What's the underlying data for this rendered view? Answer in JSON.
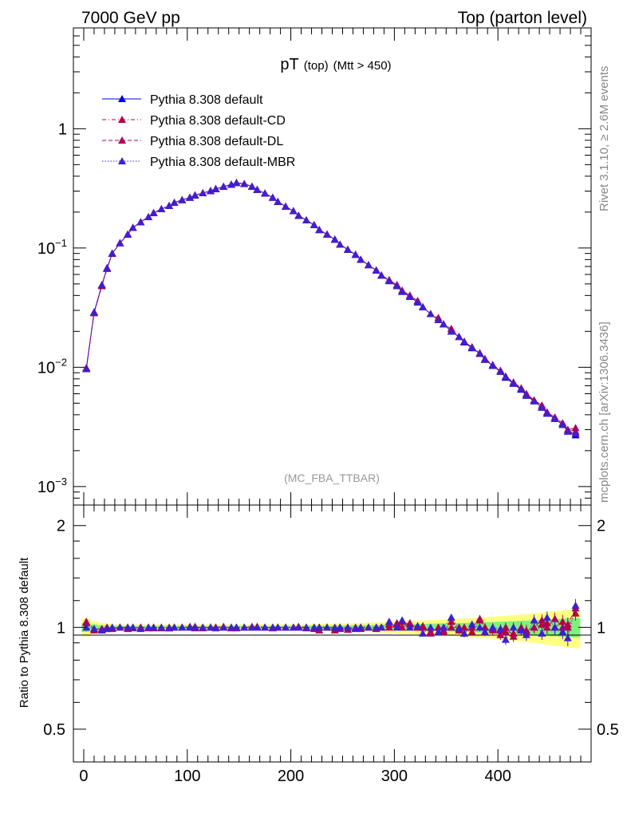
{
  "header": {
    "left": "7000 GeV pp",
    "right": "Top (parton level)"
  },
  "side_labels": {
    "rivet": "Rivet 3.1.10, ≥ 2.6M events",
    "mcplots": "mcplots.cern.ch [arXiv:1306.3436]"
  },
  "colors": {
    "default": "#0000dd",
    "cd": "#b8003c",
    "dl": "#b0005a",
    "mbr": "#3f1fd0",
    "band_green": "#7cf27c",
    "band_yellow": "#ffff80"
  },
  "chart_data": [
    {
      "type": "line",
      "title_main": "pT",
      "title_sub": "(top)",
      "title_cut": "(Mtt > 450)",
      "watermark": "(MC_FBA_TTBAR)",
      "xlabel": "",
      "ylabel": "",
      "xlim": [
        -10,
        490
      ],
      "ylim": [
        0.0007,
        7
      ],
      "yscale": "log",
      "yticks": [
        {
          "value": 1,
          "label": "1"
        },
        {
          "value": 0.1,
          "label": "10",
          "exp": "−1"
        },
        {
          "value": 0.01,
          "label": "10",
          "exp": "−2"
        },
        {
          "value": 0.001,
          "label": "10",
          "exp": "−3"
        }
      ],
      "x": [
        2.5,
        10,
        17.5,
        22.5,
        27.5,
        35,
        42.5,
        47.5,
        55,
        62.5,
        67.5,
        75,
        82.5,
        87.5,
        95,
        102.5,
        107.5,
        115,
        122.5,
        127.5,
        135,
        142.5,
        147.5,
        155,
        162.5,
        167.5,
        175,
        182.5,
        187.5,
        195,
        202.5,
        207.5,
        215,
        222.5,
        227.5,
        235,
        242.5,
        247.5,
        255,
        262.5,
        267.5,
        275,
        282.5,
        287.5,
        295,
        302.5,
        307.5,
        315,
        322.5,
        327.5,
        335,
        342.5,
        347.5,
        355,
        362.5,
        367.5,
        375,
        382.5,
        387.5,
        395,
        402.5,
        407.5,
        415,
        422.5,
        427.5,
        435,
        442.5,
        447.5,
        455,
        462.5,
        467.5,
        475
      ],
      "series": [
        {
          "name": "Pythia 8.308 default",
          "style": "solid",
          "values": [
            0.0097,
            0.029,
            0.049,
            0.068,
            0.09,
            0.11,
            0.13,
            0.148,
            0.165,
            0.182,
            0.197,
            0.212,
            0.226,
            0.24,
            0.253,
            0.265,
            0.277,
            0.289,
            0.301,
            0.313,
            0.327,
            0.341,
            0.352,
            0.345,
            0.328,
            0.308,
            0.287,
            0.265,
            0.244,
            0.223,
            0.204,
            0.187,
            0.171,
            0.156,
            0.142,
            0.13,
            0.118,
            0.107,
            0.097,
            0.088,
            0.08,
            0.072,
            0.065,
            0.059,
            0.053,
            0.048,
            0.043,
            0.039,
            0.035,
            0.032,
            0.028,
            0.025,
            0.023,
            0.02,
            0.018,
            0.0162,
            0.0145,
            0.013,
            0.0116,
            0.0103,
            0.0092,
            0.0082,
            0.0073,
            0.0065,
            0.0058,
            0.0052,
            0.0046,
            0.0041,
            0.0037,
            0.0033,
            0.0029,
            0.0027
          ]
        },
        {
          "name": "Pythia 8.308 default-CD",
          "style": "dashdot",
          "values": [
            0.0098,
            0.0285,
            0.048,
            0.067,
            0.0895,
            0.11,
            0.13,
            0.148,
            0.165,
            0.182,
            0.197,
            0.212,
            0.226,
            0.24,
            0.253,
            0.265,
            0.277,
            0.289,
            0.301,
            0.313,
            0.327,
            0.341,
            0.352,
            0.345,
            0.328,
            0.308,
            0.287,
            0.265,
            0.244,
            0.223,
            0.204,
            0.187,
            0.171,
            0.156,
            0.142,
            0.13,
            0.118,
            0.107,
            0.097,
            0.088,
            0.08,
            0.072,
            0.065,
            0.059,
            0.054,
            0.049,
            0.044,
            0.04,
            0.036,
            0.032,
            0.028,
            0.026,
            0.023,
            0.021,
            0.018,
            0.0165,
            0.0148,
            0.0132,
            0.0118,
            0.0105,
            0.0094,
            0.0084,
            0.0075,
            0.0067,
            0.006,
            0.0053,
            0.0048,
            0.0042,
            0.0038,
            0.0034,
            0.003,
            0.0029
          ]
        },
        {
          "name": "Pythia 8.308 default-DL",
          "style": "dashed",
          "values": [
            0.0099,
            0.0287,
            0.0485,
            0.0675,
            0.09,
            0.11,
            0.13,
            0.148,
            0.165,
            0.182,
            0.197,
            0.212,
            0.226,
            0.24,
            0.253,
            0.265,
            0.277,
            0.289,
            0.301,
            0.313,
            0.327,
            0.341,
            0.352,
            0.345,
            0.328,
            0.308,
            0.287,
            0.265,
            0.244,
            0.223,
            0.204,
            0.187,
            0.171,
            0.156,
            0.142,
            0.13,
            0.118,
            0.107,
            0.097,
            0.088,
            0.08,
            0.072,
            0.065,
            0.059,
            0.054,
            0.049,
            0.044,
            0.04,
            0.036,
            0.032,
            0.028,
            0.025,
            0.023,
            0.021,
            0.018,
            0.0164,
            0.0147,
            0.0131,
            0.0117,
            0.0104,
            0.0093,
            0.0083,
            0.0074,
            0.0066,
            0.0059,
            0.0053,
            0.0047,
            0.0042,
            0.0038,
            0.0034,
            0.003,
            0.0031
          ]
        },
        {
          "name": "Pythia 8.308 default-MBR",
          "style": "dotted",
          "values": [
            0.0097,
            0.029,
            0.049,
            0.068,
            0.09,
            0.11,
            0.13,
            0.148,
            0.165,
            0.182,
            0.197,
            0.212,
            0.226,
            0.24,
            0.253,
            0.265,
            0.277,
            0.289,
            0.301,
            0.313,
            0.327,
            0.341,
            0.352,
            0.345,
            0.328,
            0.308,
            0.287,
            0.265,
            0.244,
            0.223,
            0.204,
            0.187,
            0.171,
            0.156,
            0.142,
            0.13,
            0.118,
            0.107,
            0.097,
            0.088,
            0.08,
            0.072,
            0.065,
            0.059,
            0.053,
            0.048,
            0.043,
            0.039,
            0.035,
            0.032,
            0.028,
            0.025,
            0.023,
            0.02,
            0.018,
            0.0163,
            0.0146,
            0.013,
            0.0116,
            0.0104,
            0.0092,
            0.0083,
            0.0074,
            0.0066,
            0.0058,
            0.0052,
            0.0046,
            0.0041,
            0.0037,
            0.0033,
            0.0029,
            0.0028
          ]
        }
      ]
    },
    {
      "type": "line",
      "ylabel": "Ratio to Pythia 8.308 default",
      "xlim": [
        -10,
        490
      ],
      "ylim": [
        0.4,
        2.3
      ],
      "yscale": "log",
      "yticks": [
        {
          "value": 2,
          "label": "2"
        },
        {
          "value": 1,
          "label": "1"
        },
        {
          "value": 0.5,
          "label": "0.5"
        }
      ],
      "xticks": [
        {
          "value": 0,
          "label": "0"
        },
        {
          "value": 100,
          "label": "100"
        },
        {
          "value": 200,
          "label": "200"
        },
        {
          "value": 300,
          "label": "300"
        },
        {
          "value": 400,
          "label": "400"
        }
      ],
      "x": [
        2.5,
        10,
        17.5,
        22.5,
        27.5,
        35,
        42.5,
        47.5,
        55,
        62.5,
        67.5,
        75,
        82.5,
        87.5,
        95,
        102.5,
        107.5,
        115,
        122.5,
        127.5,
        135,
        142.5,
        147.5,
        155,
        162.5,
        167.5,
        175,
        182.5,
        187.5,
        195,
        202.5,
        207.5,
        215,
        222.5,
        227.5,
        235,
        242.5,
        247.5,
        255,
        262.5,
        267.5,
        275,
        282.5,
        287.5,
        295,
        302.5,
        307.5,
        315,
        322.5,
        327.5,
        335,
        342.5,
        347.5,
        355,
        362.5,
        367.5,
        375,
        382.5,
        387.5,
        395,
        402.5,
        407.5,
        415,
        422.5,
        427.5,
        435,
        442.5,
        447.5,
        455,
        462.5,
        467.5,
        475
      ],
      "band_halfwidth": [
        0.03,
        0.02,
        0.015,
        0.012,
        0.01,
        0.01,
        0.01,
        0.01,
        0.01,
        0.01,
        0.01,
        0.01,
        0.01,
        0.01,
        0.01,
        0.01,
        0.01,
        0.01,
        0.01,
        0.01,
        0.01,
        0.01,
        0.01,
        0.01,
        0.01,
        0.01,
        0.01,
        0.01,
        0.01,
        0.01,
        0.01,
        0.01,
        0.01,
        0.012,
        0.012,
        0.012,
        0.012,
        0.014,
        0.014,
        0.015,
        0.015,
        0.016,
        0.017,
        0.018,
        0.019,
        0.02,
        0.021,
        0.022,
        0.023,
        0.024,
        0.025,
        0.026,
        0.027,
        0.028,
        0.03,
        0.031,
        0.032,
        0.034,
        0.035,
        0.037,
        0.039,
        0.041,
        0.043,
        0.045,
        0.047,
        0.05,
        0.052,
        0.055,
        0.058,
        0.06,
        0.063,
        0.066
      ],
      "series": [
        {
          "name": "default-CD",
          "values": [
            1.03,
            0.98,
            0.985,
            0.99,
            0.995,
            1.0,
            0.99,
            1.0,
            1.0,
            0.995,
            1.0,
            0.995,
            1.0,
            1.0,
            1.0,
            1.005,
            0.995,
            1.0,
            1.0,
            1.0,
            1.005,
            0.995,
            1.0,
            1.0,
            1.0,
            1.005,
            1.0,
            1.0,
            1.0,
            1.0,
            1.0,
            1.005,
            1.0,
            0.99,
            1.0,
            1.0,
            0.98,
            1.0,
            0.985,
            1.0,
            0.99,
            1.0,
            1.0,
            1.0,
            1.02,
            1.03,
            1.04,
            1.02,
            1.0,
            1.0,
            0.97,
            1.0,
            0.97,
            1.04,
            0.98,
            1.0,
            0.97,
            1.05,
            1.0,
            0.99,
            0.98,
            0.97,
            0.96,
            0.99,
            0.98,
            1.0,
            1.02,
            1.03,
            1.0,
            1.04,
            1.0,
            1.1
          ]
        },
        {
          "name": "default-DL",
          "values": [
            1.04,
            0.99,
            0.99,
            1.0,
            0.99,
            1.0,
            1.0,
            0.995,
            1.0,
            1.0,
            0.995,
            1.0,
            0.995,
            1.0,
            1.0,
            1.0,
            1.005,
            0.995,
            1.0,
            1.0,
            1.0,
            1.0,
            0.995,
            1.0,
            1.005,
            1.0,
            1.0,
            0.995,
            1.0,
            1.0,
            1.0,
            1.0,
            0.995,
            1.0,
            0.98,
            1.0,
            1.0,
            0.99,
            1.0,
            0.99,
            1.0,
            1.0,
            0.99,
            1.0,
            1.0,
            1.02,
            1.0,
            1.03,
            1.0,
            1.01,
            0.96,
            1.0,
            0.98,
            1.0,
            1.0,
            0.96,
            1.0,
            1.06,
            1.0,
            0.98,
            0.95,
            1.0,
            0.94,
            1.0,
            0.97,
            1.0,
            1.05,
            1.0,
            1.06,
            1.0,
            1.02,
            1.14
          ]
        },
        {
          "name": "default-MBR",
          "values": [
            1.0,
            0.99,
            0.98,
            0.99,
            1.0,
            1.0,
            1.0,
            1.0,
            0.99,
            1.0,
            1.0,
            1.0,
            0.995,
            1.0,
            1.0,
            1.0,
            1.0,
            1.0,
            1.0,
            0.995,
            1.0,
            1.0,
            1.0,
            1.0,
            1.0,
            1.0,
            1.0,
            1.0,
            1.0,
            1.0,
            1.0,
            1.0,
            1.0,
            1.0,
            1.0,
            1.0,
            0.995,
            1.0,
            1.0,
            0.995,
            1.0,
            1.0,
            1.0,
            1.0,
            1.04,
            1.0,
            1.05,
            1.0,
            1.01,
            0.96,
            1.0,
            0.97,
            1.0,
            1.07,
            0.99,
            0.96,
            1.02,
            1.0,
            0.97,
            1.0,
            0.99,
            0.92,
            1.0,
            0.98,
            0.95,
            1.05,
            0.96,
            1.07,
            1.0,
            0.97,
            0.93,
            1.16
          ]
        }
      ]
    }
  ]
}
